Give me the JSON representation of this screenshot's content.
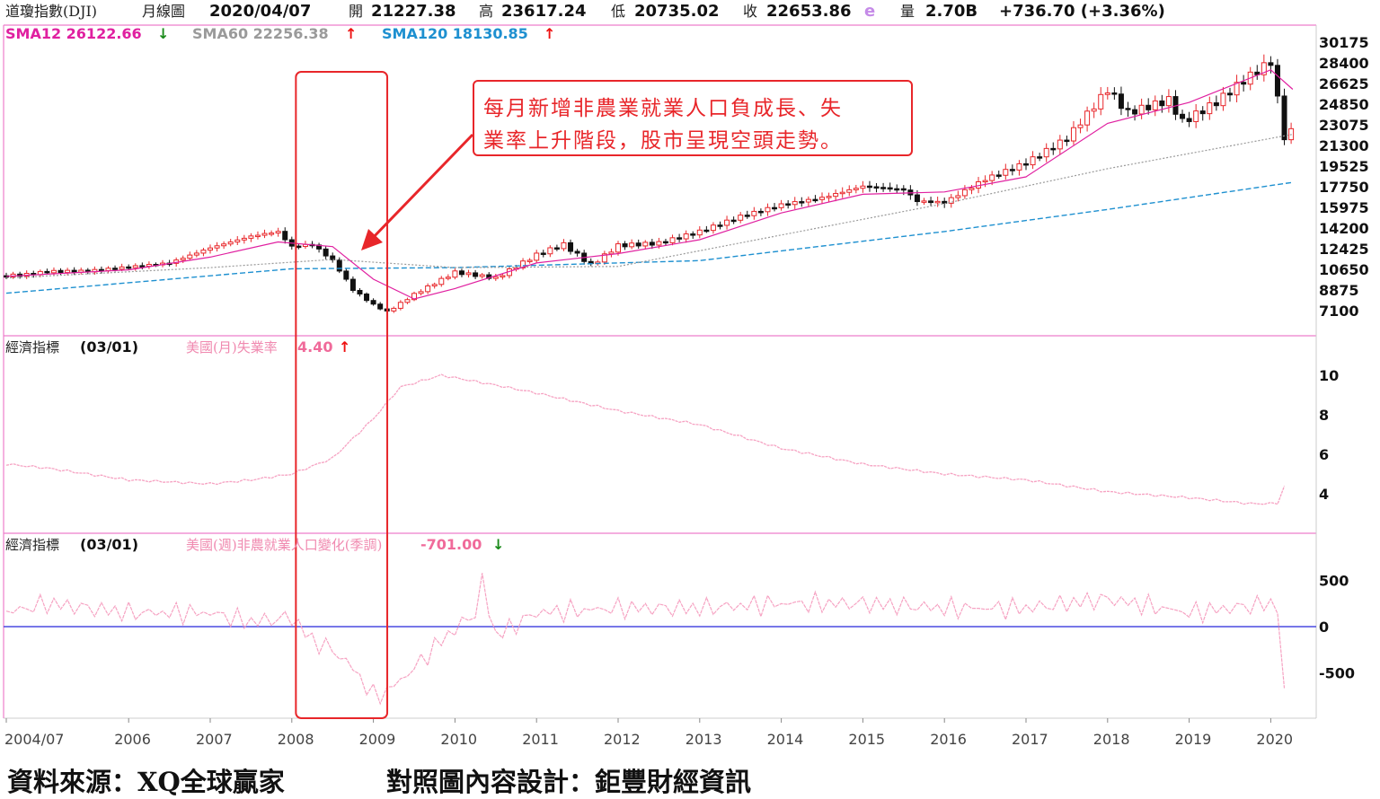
{
  "header": {
    "symbol": "道瓊指數(DJI)",
    "period": "月線圖",
    "date": "2020/04/07",
    "open_label": "開",
    "open": "21227.38",
    "high_label": "高",
    "high": "23617.24",
    "low_label": "低",
    "low": "20735.02",
    "close_label": "收",
    "close": "22653.86",
    "estimate_flag": "e",
    "volume_label": "量",
    "volume": "2.70B",
    "change": "+736.70 (+3.36%)"
  },
  "sma": [
    {
      "label": "SMA12 26122.66",
      "arrow": "↓",
      "color": "#e020a0",
      "arrow_color": "#1a8a1a"
    },
    {
      "label": "SMA60 22256.38",
      "arrow": "↑",
      "color": "#9a9a9a",
      "arrow_color": "#ee1111"
    },
    {
      "label": "SMA120 18130.85",
      "arrow": "↑",
      "color": "#1e90d0",
      "arrow_color": "#ee1111"
    }
  ],
  "panels": {
    "unemployment": {
      "label": "經濟指標",
      "date": "(03/01)",
      "indicator": "美國(月)失業率",
      "value": "4.40",
      "arrow": "↑"
    },
    "payrolls": {
      "label": "經濟指標",
      "date": "(03/01)",
      "indicator": "美國(週)非農就業人口變化(季調)",
      "value": "-701.00",
      "arrow": "↓"
    }
  },
  "annotation": {
    "line1": "每月新增非農業就業人口負成長、失",
    "line2": "業率上升階段，股市呈現空頭走勢。"
  },
  "footer": {
    "source": "資料來源：XQ全球贏家",
    "design": "對照圖內容設計：鉅豐財經資訊"
  },
  "colors": {
    "sma12": "#e020a0",
    "sma60": "#9a9a9a",
    "sma120": "#1e90d0",
    "up_candle": "#e8262a",
    "down_candle": "#111111",
    "unemployment_line": "#f6a2c2",
    "payrolls_line": "#f6a2c2",
    "zero_line": "#4a4ae0",
    "highlight_box": "#e8262a"
  },
  "chart_data": [
    {
      "type": "candlestick",
      "title": "道瓊指數(DJI) 月線圖",
      "y_ticks": [
        30175,
        28400,
        26625,
        24850,
        23075,
        21300,
        19525,
        17750,
        15975,
        14200,
        12425,
        10650,
        8875,
        7100
      ],
      "x_ticks": [
        "2004/07",
        "2006",
        "2007",
        "2008",
        "2009",
        "2010",
        "2011",
        "2012",
        "2013",
        "2014",
        "2015",
        "2016",
        "2017",
        "2018",
        "2019",
        "2020"
      ],
      "x_range": [
        "2004/07",
        "2020/04"
      ],
      "close_series": [
        [
          2004.5,
          10100
        ],
        [
          2004.75,
          10200
        ],
        [
          2005.0,
          10450
        ],
        [
          2005.5,
          10500
        ],
        [
          2006.0,
          10850
        ],
        [
          2006.5,
          11200
        ],
        [
          2007.0,
          12500
        ],
        [
          2007.5,
          13500
        ],
        [
          2007.83,
          13900
        ],
        [
          2008.0,
          12600
        ],
        [
          2008.25,
          12800
        ],
        [
          2008.5,
          11400
        ],
        [
          2008.75,
          8900
        ],
        [
          2009.0,
          7600
        ],
        [
          2009.17,
          7000
        ],
        [
          2009.5,
          8500
        ],
        [
          2010.0,
          10400
        ],
        [
          2010.5,
          9900
        ],
        [
          2011.0,
          11900
        ],
        [
          2011.33,
          12800
        ],
        [
          2011.67,
          11000
        ],
        [
          2012.0,
          12700
        ],
        [
          2012.5,
          12900
        ],
        [
          2013.0,
          13900
        ],
        [
          2013.5,
          15200
        ],
        [
          2014.0,
          16200
        ],
        [
          2014.5,
          16800
        ],
        [
          2015.0,
          17800
        ],
        [
          2015.5,
          17500
        ],
        [
          2015.67,
          16500
        ],
        [
          2016.0,
          16400
        ],
        [
          2016.5,
          18400
        ],
        [
          2017.0,
          19800
        ],
        [
          2017.5,
          21900
        ],
        [
          2018.0,
          26100
        ],
        [
          2018.25,
          24100
        ],
        [
          2018.75,
          25200
        ],
        [
          2018.92,
          23300
        ],
        [
          2019.33,
          25000
        ],
        [
          2019.67,
          26900
        ],
        [
          2020.0,
          28500
        ],
        [
          2020.08,
          25400
        ],
        [
          2020.17,
          21900
        ],
        [
          2020.27,
          22650
        ]
      ],
      "sma12": [
        [
          2004.5,
          10050
        ],
        [
          2006.0,
          10600
        ],
        [
          2007.0,
          11700
        ],
        [
          2007.83,
          13000
        ],
        [
          2008.5,
          12600
        ],
        [
          2009.0,
          9800
        ],
        [
          2009.5,
          8100
        ],
        [
          2010.0,
          9000
        ],
        [
          2011.0,
          11200
        ],
        [
          2012.0,
          12000
        ],
        [
          2013.0,
          13200
        ],
        [
          2014.0,
          15500
        ],
        [
          2015.0,
          17100
        ],
        [
          2016.0,
          17300
        ],
        [
          2017.0,
          18600
        ],
        [
          2018.0,
          23200
        ],
        [
          2019.0,
          25000
        ],
        [
          2020.0,
          27800
        ],
        [
          2020.27,
          26123
        ]
      ],
      "sma60": [
        [
          2004.5,
          9900
        ],
        [
          2007.0,
          10800
        ],
        [
          2008.5,
          11500
        ],
        [
          2010.0,
          10800
        ],
        [
          2012.0,
          10900
        ],
        [
          2014.0,
          13600
        ],
        [
          2016.0,
          16300
        ],
        [
          2018.0,
          19300
        ],
        [
          2020.27,
          22256
        ]
      ],
      "sma120": [
        [
          2004.5,
          8600
        ],
        [
          2008.0,
          10700
        ],
        [
          2010.0,
          10800
        ],
        [
          2013.0,
          11400
        ],
        [
          2016.0,
          13900
        ],
        [
          2018.0,
          15800
        ],
        [
          2020.27,
          18131
        ]
      ],
      "candles_up_color": "red",
      "candles_down_color": "black"
    },
    {
      "type": "line",
      "title": "美國(月)失業率",
      "y_ticks": [
        10,
        8,
        6,
        4
      ],
      "series": [
        {
          "name": "美國(月)失業率",
          "x": [
            2004.5,
            2005.0,
            2006.0,
            2007.0,
            2007.5,
            2008.0,
            2008.5,
            2008.75,
            2009.0,
            2009.33,
            2009.83,
            2010.5,
            2011.0,
            2012.0,
            2013.0,
            2014.0,
            2015.0,
            2016.0,
            2017.0,
            2018.0,
            2019.0,
            2019.75,
            2020.08,
            2020.17
          ],
          "values": [
            5.5,
            5.3,
            4.7,
            4.5,
            4.7,
            5.0,
            5.8,
            6.8,
            7.8,
            9.4,
            10.0,
            9.5,
            9.1,
            8.2,
            7.5,
            6.3,
            5.5,
            5.0,
            4.7,
            4.1,
            3.8,
            3.5,
            3.5,
            4.4
          ]
        }
      ],
      "latest_value": 4.4
    },
    {
      "type": "line",
      "title": "美國(週)非農就業人口變化(季調)",
      "y_ticks": [
        500,
        0,
        -500
      ],
      "series": [
        {
          "name": "美國(週)非農就業人口變化(季調)",
          "x": [
            2004.5,
            2005.0,
            2005.5,
            2006.0,
            2007.0,
            2007.5,
            2008.0,
            2008.25,
            2008.5,
            2008.75,
            2009.0,
            2009.17,
            2009.5,
            2009.83,
            2010.25,
            2010.33,
            2010.5,
            2011.0,
            2012.0,
            2013.0,
            2014.0,
            2015.0,
            2016.0,
            2017.0,
            2018.0,
            2019.0,
            2020.0,
            2020.08,
            2020.17
          ],
          "values": [
            150,
            250,
            200,
            150,
            150,
            50,
            100,
            -150,
            -250,
            -450,
            -750,
            -700,
            -450,
            -150,
            150,
            500,
            -100,
            150,
            200,
            200,
            250,
            250,
            200,
            200,
            300,
            150,
            250,
            250,
            -701
          ]
        }
      ],
      "zero_line": 0,
      "latest_value": -701.0
    }
  ]
}
